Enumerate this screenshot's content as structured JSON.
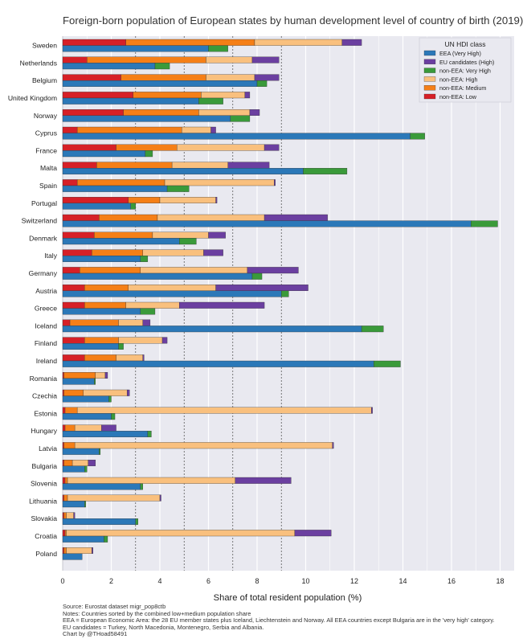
{
  "chart_data": {
    "type": "bar",
    "title": "Foreign-born population of European states by human development level of country of birth (2019)",
    "xlabel": "Share of total resident population (%)",
    "ylabel": "",
    "xlim": [
      0,
      18.5
    ],
    "xticks": [
      0,
      2,
      4,
      6,
      8,
      10,
      12,
      14,
      16,
      18
    ],
    "grid": "vertical",
    "legend_placement": "top-right",
    "legend_title": "UN HDI class",
    "legend": [
      {
        "label": "EEA (Very High)",
        "color": "#2b78b8"
      },
      {
        "label": "EU candidates (High)",
        "color": "#6b3fa0"
      },
      {
        "label": "non-EEA: Very High",
        "color": "#3a9a3a"
      },
      {
        "label": "non-EEA: High",
        "color": "#f9c07e"
      },
      {
        "label": "non-EEA: Medium",
        "color": "#f57f17"
      },
      {
        "label": "non-EEA: Low",
        "color": "#d62027"
      }
    ],
    "stack_order_top": [
      "non-EEA: Low",
      "non-EEA: Medium",
      "non-EEA: High",
      "EU candidates (High)"
    ],
    "stack_order_bottom": [
      "EEA (Very High)",
      "non-EEA: Very High"
    ],
    "categories": [
      "Sweden",
      "Netherlands",
      "Belgium",
      "United Kingdom",
      "Norway",
      "Cyprus",
      "France",
      "Malta",
      "Spain",
      "Portugal",
      "Switzerland",
      "Denmark",
      "Italy",
      "Germany",
      "Austria",
      "Greece",
      "Iceland",
      "Finland",
      "Ireland",
      "Romania",
      "Czechia",
      "Estonia",
      "Hungary",
      "Latvia",
      "Bulgaria",
      "Slovenia",
      "Lithuania",
      "Slovakia",
      "Croatia",
      "Poland"
    ],
    "series": [
      {
        "name": "non-EEA: Low",
        "values": [
          2.6,
          1.0,
          2.4,
          2.9,
          2.5,
          0.6,
          2.2,
          1.4,
          0.6,
          2.7,
          1.5,
          1.3,
          1.2,
          0.7,
          0.9,
          0.9,
          0.3,
          0.9,
          0.9,
          0.05,
          0.05,
          0.1,
          0.1,
          0.05,
          0.05,
          0.1,
          0.05,
          0.05,
          0.1,
          0.05
        ]
      },
      {
        "name": "non-EEA: Medium",
        "values": [
          5.3,
          4.9,
          3.5,
          2.8,
          3.1,
          4.3,
          2.5,
          3.1,
          3.6,
          1.3,
          2.4,
          2.4,
          2.1,
          2.5,
          1.8,
          1.7,
          2.0,
          1.4,
          1.3,
          1.3,
          0.8,
          0.5,
          0.4,
          0.45,
          0.35,
          0.1,
          0.15,
          0.1,
          0.05,
          0.1
        ]
      },
      {
        "name": "non-EEA: High",
        "values": [
          3.6,
          1.9,
          2.0,
          1.8,
          2.1,
          1.2,
          3.6,
          2.3,
          4.5,
          2.3,
          4.4,
          2.3,
          2.5,
          4.4,
          3.6,
          2.2,
          1.0,
          1.8,
          1.1,
          0.4,
          1.8,
          12.1,
          1.1,
          10.6,
          0.65,
          6.9,
          3.8,
          0.3,
          9.4,
          1.05
        ]
      },
      {
        "name": "EU candidates (High)",
        "values": [
          0.8,
          1.1,
          1.0,
          0.2,
          0.4,
          0.2,
          0.6,
          1.7,
          0.05,
          0.05,
          2.6,
          0.7,
          0.8,
          2.1,
          3.8,
          3.5,
          0.3,
          0.2,
          0.05,
          0.1,
          0.1,
          0.05,
          0.6,
          0.05,
          0.3,
          2.3,
          0.05,
          0.05,
          1.5,
          0.05
        ]
      },
      {
        "name": "EEA (Very High)",
        "values": [
          6.0,
          3.8,
          8.0,
          5.6,
          6.9,
          14.3,
          3.4,
          9.9,
          4.3,
          2.8,
          16.8,
          4.8,
          3.2,
          7.8,
          9.0,
          3.2,
          12.3,
          2.3,
          12.8,
          1.3,
          1.9,
          2.0,
          3.5,
          1.5,
          0.9,
          3.2,
          0.9,
          3.0,
          1.7,
          0.8
        ]
      },
      {
        "name": "non-EEA: Very High",
        "values": [
          0.8,
          0.6,
          0.4,
          1.0,
          0.8,
          0.6,
          0.3,
          1.8,
          0.9,
          0.2,
          1.1,
          0.7,
          0.3,
          0.4,
          0.3,
          0.6,
          0.9,
          0.2,
          1.1,
          0.05,
          0.1,
          0.15,
          0.15,
          0.05,
          0.1,
          0.1,
          0.05,
          0.1,
          0.15,
          0.0
        ]
      }
    ]
  },
  "notes": [
    "Source: Eurostat dataset migr_pop8ctb",
    "Notes: Countries sorted by the combined low+medium population share",
    "EEA = European Economic Area: the 28 EU member states plus Iceland, Liechtenstein and Norway. All EEA countries except Bulgaria are in the 'very high' category.",
    "EU candidates = Turkey, North Macedonia, Montenegro, Serbia and Albania.",
    "Chart by @THoad58491"
  ]
}
